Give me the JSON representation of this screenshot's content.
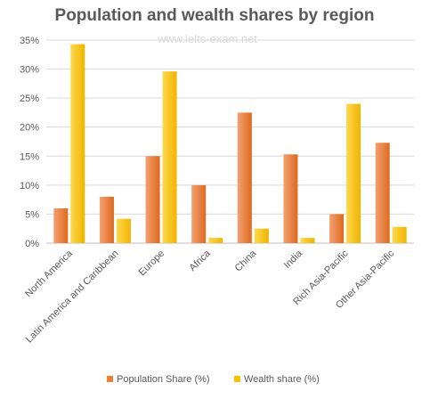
{
  "chart_data": {
    "type": "bar",
    "title": "Population and wealth shares by region",
    "watermark": "www.ielts-exam.net",
    "categories": [
      "North America",
      "Latin America and Caribbean",
      "Europe",
      "Africa",
      "China",
      "India",
      "Rich Asia-Pacific",
      "Other Asia-Pacific"
    ],
    "series": [
      {
        "name": "Population Share (%)",
        "values": [
          6,
          8,
          15,
          10,
          22.5,
          15.3,
          5,
          17.3
        ],
        "color": "#ED7D31"
      },
      {
        "name": "Wealth share (%)",
        "values": [
          34.3,
          4.2,
          29.6,
          0.9,
          2.5,
          0.9,
          24,
          2.8
        ],
        "color": "#FFC000"
      }
    ],
    "ylim": [
      0,
      35
    ],
    "yticks": [
      "0%",
      "5%",
      "10%",
      "15%",
      "20%",
      "25%",
      "30%",
      "35%"
    ],
    "grid": true,
    "legend_position": "bottom"
  }
}
